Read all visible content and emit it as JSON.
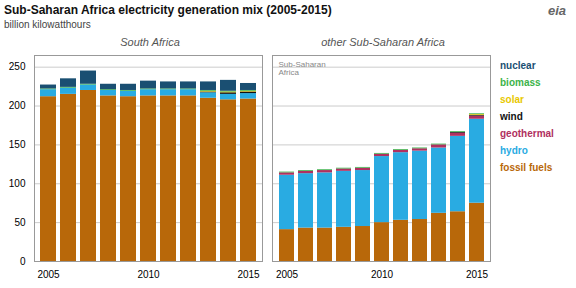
{
  "title": "Sub-Saharan Africa electricity generation mix (2005-2015)",
  "annotations": [
    "eia"
  ],
  "chart_data": [
    {
      "type": "bar",
      "stacked": true,
      "title": "South Africa",
      "ylabel": "billion kilowatthours",
      "categories": [
        "2005",
        null,
        null,
        null,
        null,
        "2010",
        null,
        null,
        null,
        null,
        "2015"
      ],
      "series": [
        {
          "name": "fossil fuels",
          "color": "#b8680a",
          "values": [
            212,
            215,
            220,
            213,
            212,
            213,
            213,
            213,
            210,
            208,
            209
          ]
        },
        {
          "name": "hydro",
          "color": "#29abe2",
          "values": [
            9,
            8,
            7,
            7,
            7,
            8,
            8,
            8,
            7,
            7,
            7
          ]
        },
        {
          "name": "geothermal",
          "color": "#b03060",
          "values": [
            0,
            0,
            0,
            0,
            0,
            0,
            0,
            0,
            0,
            0,
            0
          ]
        },
        {
          "name": "wind",
          "color": "#111111",
          "values": [
            0,
            0,
            0,
            0,
            0,
            0,
            0,
            0,
            1,
            2,
            2
          ]
        },
        {
          "name": "solar",
          "color": "#e8c800",
          "values": [
            0,
            0,
            0,
            0,
            0,
            0,
            0,
            0,
            1,
            1,
            1
          ]
        },
        {
          "name": "biomass",
          "color": "#3cb34a",
          "values": [
            1,
            1,
            1,
            1,
            1,
            1,
            1,
            1,
            1,
            1,
            1
          ]
        },
        {
          "name": "nuclear",
          "color": "#1a4f72",
          "values": [
            5,
            11,
            17,
            7,
            8,
            10,
            9,
            9,
            11,
            14,
            9
          ]
        }
      ],
      "ylim": [
        0,
        265
      ],
      "yticks": [
        0,
        50,
        100,
        150,
        200,
        250
      ],
      "grid": true
    },
    {
      "type": "bar",
      "stacked": true,
      "title": "other Sub-Saharan Africa",
      "categories": [
        "2005",
        null,
        null,
        null,
        null,
        "2010",
        null,
        null,
        null,
        null,
        "2015"
      ],
      "series": [
        {
          "name": "fossil fuels",
          "color": "#b8680a",
          "values": [
            41,
            43,
            43,
            44,
            45,
            50,
            53,
            54,
            62,
            64,
            75
          ]
        },
        {
          "name": "hydro",
          "color": "#29abe2",
          "values": [
            70,
            70,
            71,
            72,
            72,
            85,
            87,
            88,
            84,
            97,
            108
          ]
        },
        {
          "name": "geothermal",
          "color": "#b03060",
          "values": [
            3,
            3,
            3,
            3,
            3,
            3,
            3,
            3,
            4,
            4,
            4
          ]
        },
        {
          "name": "wind",
          "color": "#111111",
          "values": [
            0,
            0,
            0,
            0,
            0,
            0,
            0,
            0,
            0,
            1,
            1
          ]
        },
        {
          "name": "solar",
          "color": "#e8c800",
          "values": [
            0,
            0,
            0,
            0,
            0,
            0,
            0,
            0,
            0,
            0,
            1
          ]
        },
        {
          "name": "biomass",
          "color": "#3cb34a",
          "values": [
            1,
            1,
            1,
            1,
            1,
            1,
            1,
            1,
            1,
            1,
            1
          ]
        },
        {
          "name": "nuclear",
          "color": "#1a4f72",
          "values": [
            0,
            0,
            0,
            0,
            0,
            0,
            0,
            0,
            0,
            0,
            0
          ]
        }
      ],
      "ylim": [
        0,
        265
      ],
      "yticks": [
        0,
        50,
        100,
        150,
        200,
        250
      ],
      "grid": true,
      "tick_labels": "x",
      "legend": "right",
      "annotations": [
        "Sub-Saharan\nAfrica"
      ]
    }
  ]
}
